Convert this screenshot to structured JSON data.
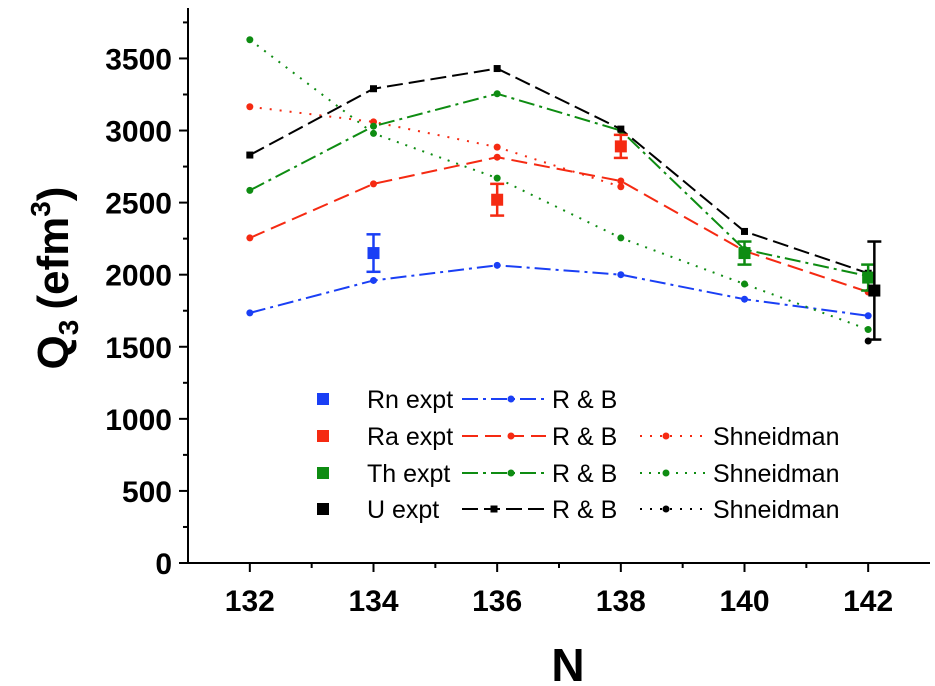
{
  "chart_data": {
    "type": "scatter",
    "xlabel": "N",
    "ylabel_main": "Q",
    "ylabel_sub": "3",
    "ylabel_unit_open": "(efm",
    "ylabel_unit_sup": "3",
    "ylabel_unit_close": ")",
    "xlim": [
      131,
      143
    ],
    "ylim": [
      0,
      3850
    ],
    "xticks": [
      132,
      134,
      136,
      138,
      140,
      142
    ],
    "yticks": [
      0,
      500,
      1000,
      1500,
      2000,
      2500,
      3000,
      3500
    ],
    "colors": {
      "Rn": "#1a3ff5",
      "Ra": "#f52a12",
      "Th": "#0e8c12",
      "U": "#000000"
    },
    "series": [
      {
        "name": "Rn expt",
        "kind": "expt",
        "color": "#1a3ff5",
        "points": [
          {
            "x": 134,
            "y": 2150,
            "err": 130
          }
        ]
      },
      {
        "name": "Ra expt",
        "kind": "expt",
        "color": "#f52a12",
        "points": [
          {
            "x": 136,
            "y": 2520,
            "err": 110
          },
          {
            "x": 138,
            "y": 2890,
            "err": 80
          }
        ]
      },
      {
        "name": "Th expt",
        "kind": "expt",
        "color": "#0e8c12",
        "points": [
          {
            "x": 140,
            "y": 2150,
            "err": 80
          },
          {
            "x": 142,
            "y": 1980,
            "err": 90
          }
        ]
      },
      {
        "name": "U expt",
        "kind": "expt",
        "color": "#000000",
        "points": [
          {
            "x": 142.1,
            "y": 1890,
            "err": 340
          }
        ]
      },
      {
        "name": "R & B",
        "kind": "theory",
        "group": "Rn",
        "color": "#1a3ff5",
        "dash": "16,5,3,5",
        "marker": "circle",
        "x": [
          132,
          134,
          136,
          138,
          140,
          142
        ],
        "y": [
          1735,
          1960,
          2065,
          2000,
          1830,
          1715
        ]
      },
      {
        "name": "R & B",
        "kind": "theory",
        "group": "Ra",
        "color": "#f52a12",
        "dash": "16,7",
        "marker": "circle",
        "x": [
          132,
          134,
          136,
          138,
          140,
          142
        ],
        "y": [
          2255,
          2630,
          2815,
          2650,
          2165,
          1880
        ]
      },
      {
        "name": "Shneidman",
        "kind": "theory",
        "group": "Ra",
        "color": "#f52a12",
        "dash": "2,8",
        "marker": "circle",
        "x": [
          132,
          134,
          136,
          138
        ],
        "y": [
          3165,
          3060,
          2885,
          2610
        ]
      },
      {
        "name": "R & B",
        "kind": "theory",
        "group": "Th",
        "color": "#0e8c12",
        "dash": "16,5,3,5",
        "marker": "circle",
        "x": [
          132,
          134,
          136,
          138,
          140,
          142
        ],
        "y": [
          2585,
          3030,
          3255,
          3000,
          2175,
          1990
        ]
      },
      {
        "name": "Shneidman",
        "kind": "theory",
        "group": "Th",
        "color": "#0e8c12",
        "dash": "2,7",
        "marker": "circle",
        "x": [
          132,
          134,
          136,
          138,
          140,
          142
        ],
        "y": [
          3630,
          2980,
          2670,
          2255,
          1935,
          1620
        ]
      },
      {
        "name": "R & B",
        "kind": "theory",
        "group": "U",
        "color": "#000000",
        "dash": "16,6",
        "marker": "square",
        "x": [
          132,
          134,
          136,
          138,
          140,
          142
        ],
        "y": [
          2830,
          3290,
          3430,
          3010,
          2300,
          2010
        ]
      },
      {
        "name": "Shneidman",
        "kind": "theory",
        "group": "U",
        "color": "#000000",
        "dash": "2,8",
        "marker": "circle",
        "x": [
          142
        ],
        "y": [
          1540
        ]
      }
    ],
    "legend": {
      "placement": "bottom-center",
      "rows": [
        {
          "expt": "Rn expt",
          "color": "#1a3ff5",
          "rb": "R & B",
          "rb_dash": "16,5,3,5",
          "rb_marker": "circle",
          "sh": ""
        },
        {
          "expt": "Ra expt",
          "color": "#f52a12",
          "rb": "R & B",
          "rb_dash": "16,7",
          "rb_marker": "circle",
          "sh": "Shneidman",
          "sh_dash": "2,8"
        },
        {
          "expt": "Th expt",
          "color": "#0e8c12",
          "rb": "R & B",
          "rb_dash": "16,5,3,5",
          "rb_marker": "circle",
          "sh": "Shneidman",
          "sh_dash": "2,7"
        },
        {
          "expt": "U expt",
          "color": "#000000",
          "rb": "R & B",
          "rb_dash": "16,6",
          "rb_marker": "square",
          "sh": "Shneidman",
          "sh_dash": "2,8"
        }
      ]
    }
  }
}
